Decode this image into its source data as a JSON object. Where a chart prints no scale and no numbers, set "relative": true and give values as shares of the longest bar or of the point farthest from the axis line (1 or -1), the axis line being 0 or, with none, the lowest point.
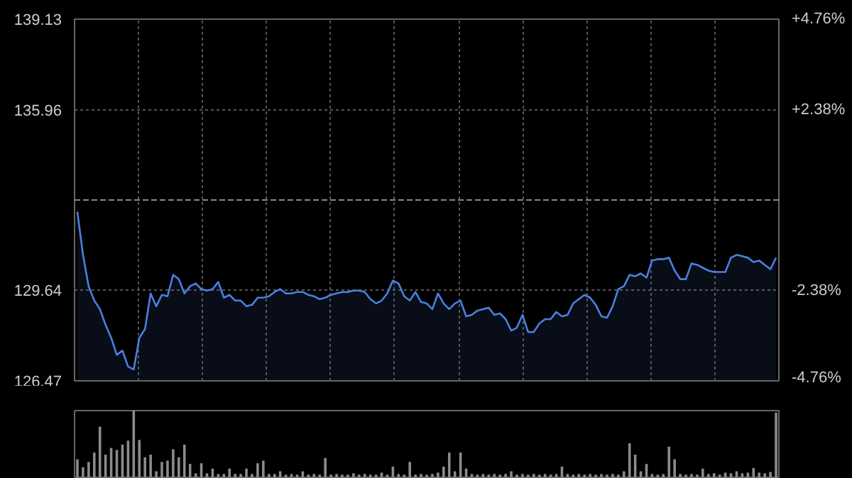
{
  "chart_data": [
    {
      "type": "area",
      "categories": [
        null,
        null,
        null,
        null,
        null,
        null,
        null,
        null,
        null,
        null,
        null,
        null,
        null,
        null,
        null,
        null,
        null,
        null,
        null,
        null,
        null,
        null,
        null,
        null,
        null,
        null,
        null,
        null,
        null,
        null,
        null,
        null,
        null,
        null,
        null,
        null,
        null,
        null,
        null,
        null,
        null,
        null,
        null,
        null,
        null,
        null,
        null,
        null,
        null,
        null,
        null,
        null,
        null,
        null,
        null,
        null,
        null,
        null,
        null,
        null,
        null,
        null,
        null,
        null,
        null,
        null,
        null,
        null,
        null,
        null,
        null,
        null,
        null,
        null,
        null,
        null,
        null,
        null,
        null,
        null,
        null,
        null,
        null,
        null,
        null,
        null,
        null,
        null,
        null,
        null,
        null,
        null,
        null,
        null,
        null,
        null,
        null,
        null,
        null,
        null,
        null,
        null,
        null,
        null,
        null,
        null,
        null,
        null,
        null,
        null,
        null,
        null,
        null,
        null,
        null,
        null,
        null,
        null,
        null,
        null,
        null,
        null,
        null,
        null,
        null
      ],
      "ylim": [
        126.47,
        139.13
      ],
      "yticks": [
        126.47,
        129.64,
        135.96,
        139.13
      ],
      "y2lim": [
        -4.76,
        4.76
      ],
      "y2ticks": [
        {
          "value": -4.76,
          "label": "-4.76%"
        },
        {
          "value": -2.38,
          "label": "-2.38%"
        },
        {
          "value": 2.38,
          "label": "+2.38%"
        },
        {
          "value": 4.76,
          "label": "+4.76%"
        }
      ],
      "ref_lines": [
        {
          "axis": "y",
          "value": 132.8,
          "label": null,
          "line_style": "dashed"
        }
      ],
      "grid": true,
      "tick_labels": "y",
      "series": [
        {
          "color": "#4a80e0",
          "values": [
            132.39,
            130.88,
            129.78,
            129.28,
            128.98,
            128.43,
            127.98,
            127.38,
            127.53,
            126.97,
            126.87,
            127.98,
            128.28,
            129.53,
            129.08,
            129.48,
            129.43,
            130.18,
            130.03,
            129.53,
            129.78,
            129.88,
            129.68,
            129.63,
            129.68,
            129.93,
            129.38,
            129.48,
            129.28,
            129.28,
            129.08,
            129.13,
            129.38,
            129.38,
            129.43,
            129.58,
            129.68,
            129.53,
            129.53,
            129.58,
            129.58,
            129.48,
            129.43,
            129.33,
            129.38,
            129.48,
            129.53,
            129.58,
            129.58,
            129.63,
            129.63,
            129.58,
            129.33,
            129.18,
            129.28,
            129.53,
            129.98,
            129.88,
            129.43,
            129.28,
            129.58,
            129.23,
            129.18,
            128.98,
            129.53,
            129.18,
            128.98,
            129.18,
            129.28,
            128.73,
            128.78,
            128.93,
            128.98,
            129.03,
            128.78,
            128.83,
            128.63,
            128.23,
            128.33,
            128.78,
            128.18,
            128.18,
            128.48,
            128.63,
            128.63,
            128.88,
            128.73,
            128.78,
            129.18,
            129.33,
            129.48,
            129.38,
            129.13,
            128.73,
            128.68,
            129.08,
            129.68,
            129.78,
            130.18,
            130.13,
            130.23,
            130.08,
            130.68,
            130.73,
            130.73,
            130.78,
            130.33,
            130.03,
            130.03,
            130.58,
            130.53,
            130.43,
            130.33,
            130.28,
            130.28,
            130.28,
            130.78,
            130.88,
            130.83,
            130.78,
            130.63,
            130.68,
            130.53,
            130.38,
            130.78
          ]
        }
      ]
    },
    {
      "type": "bar",
      "relative": true,
      "tick_labels": false,
      "categories": [
        null,
        null,
        null,
        null,
        null,
        null,
        null,
        null,
        null,
        null,
        null,
        null,
        null,
        null,
        null,
        null,
        null,
        null,
        null,
        null,
        null,
        null,
        null,
        null,
        null,
        null,
        null,
        null,
        null,
        null,
        null,
        null,
        null,
        null,
        null,
        null,
        null,
        null,
        null,
        null,
        null,
        null,
        null,
        null,
        null,
        null,
        null,
        null,
        null,
        null,
        null,
        null,
        null,
        null,
        null,
        null,
        null,
        null,
        null,
        null,
        null,
        null,
        null,
        null,
        null,
        null,
        null,
        null,
        null,
        null,
        null,
        null,
        null,
        null,
        null,
        null,
        null,
        null,
        null,
        null,
        null,
        null,
        null,
        null,
        null,
        null,
        null,
        null,
        null,
        null,
        null,
        null,
        null,
        null,
        null,
        null,
        null,
        null,
        null,
        null,
        null,
        null,
        null,
        null,
        null,
        null,
        null,
        null,
        null,
        null,
        null,
        null,
        null,
        null,
        null,
        null,
        null,
        null,
        null,
        null,
        null,
        null,
        null,
        null,
        null
      ],
      "series": [
        {
          "color": "#8c8c8c",
          "values": [
            0.27,
            0.15,
            0.23,
            0.37,
            0.76,
            0.34,
            0.44,
            0.41,
            0.49,
            0.55,
            1.0,
            0.56,
            0.3,
            0.34,
            0.09,
            0.23,
            0.25,
            0.42,
            0.3,
            0.49,
            0.2,
            0.06,
            0.21,
            0.06,
            0.13,
            0.05,
            0.05,
            0.13,
            0.05,
            0.05,
            0.13,
            0.05,
            0.21,
            0.25,
            0.05,
            0.05,
            0.09,
            0.04,
            0.05,
            0.04,
            0.09,
            0.04,
            0.05,
            0.04,
            0.29,
            0.04,
            0.05,
            0.04,
            0.04,
            0.06,
            0.04,
            0.05,
            0.04,
            0.04,
            0.07,
            0.04,
            0.16,
            0.05,
            0.04,
            0.23,
            0.04,
            0.05,
            0.04,
            0.05,
            0.07,
            0.16,
            0.37,
            0.09,
            0.37,
            0.13,
            0.05,
            0.04,
            0.05,
            0.04,
            0.05,
            0.04,
            0.05,
            0.09,
            0.04,
            0.05,
            0.04,
            0.05,
            0.04,
            0.05,
            0.04,
            0.05,
            0.16,
            0.05,
            0.04,
            0.05,
            0.04,
            0.05,
            0.04,
            0.05,
            0.04,
            0.05,
            0.04,
            0.09,
            0.51,
            0.34,
            0.09,
            0.2,
            0.05,
            0.04,
            0.05,
            0.46,
            0.27,
            0.05,
            0.04,
            0.05,
            0.04,
            0.13,
            0.05,
            0.06,
            0.04,
            0.07,
            0.06,
            0.09,
            0.06,
            0.07,
            0.14,
            0.07,
            0.06,
            0.08,
            0.97
          ]
        }
      ]
    }
  ]
}
